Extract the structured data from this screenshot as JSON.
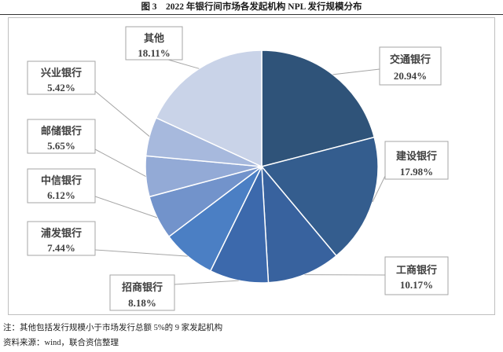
{
  "figure": {
    "title": "图 3　2022 年银行间市场各发起机构 NPL 发行规模分布",
    "note": "注：其他包括发行规模小于市场发行总额 5%的 9 家发起机构",
    "source": "资料来源：wind，联合资信整理"
  },
  "chart_data": {
    "type": "pie",
    "unit": "%",
    "legend": "none",
    "labels_shown": "callout boxes with name and percentage",
    "slices": [
      {
        "label": "交通银行",
        "value": 20.94,
        "color": "#2f5379"
      },
      {
        "label": "建设银行",
        "value": 17.98,
        "color": "#345d8e"
      },
      {
        "label": "工商银行",
        "value": 10.17,
        "color": "#38629e"
      },
      {
        "label": "招商银行",
        "value": 8.18,
        "color": "#3c69ac"
      },
      {
        "label": "浦发银行",
        "value": 7.44,
        "color": "#4b7fc4"
      },
      {
        "label": "中信银行",
        "value": 6.12,
        "color": "#7293cb"
      },
      {
        "label": "邮储银行",
        "value": 5.65,
        "color": "#93aad6"
      },
      {
        "label": "兴业银行",
        "value": 5.42,
        "color": "#a7b9dd"
      },
      {
        "label": "其他",
        "value": 18.11,
        "color": "#c9d3e8"
      }
    ]
  }
}
